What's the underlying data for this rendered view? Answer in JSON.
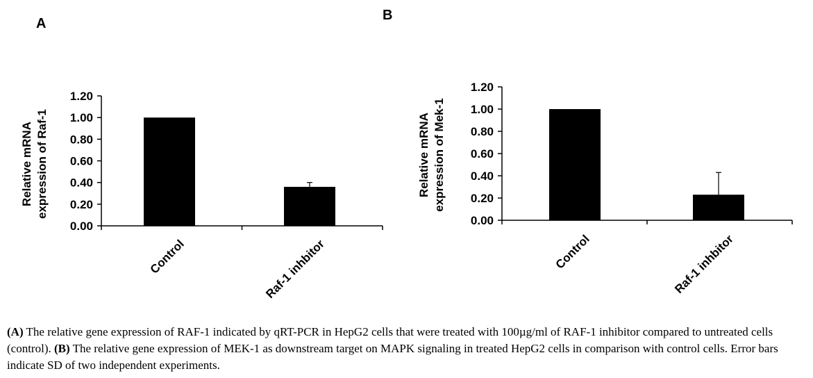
{
  "chart_data": [
    {
      "panel": "A",
      "type": "bar",
      "categories": [
        "Control",
        "Raf-1 inhbitor"
      ],
      "values": [
        1.0,
        0.36
      ],
      "errors": [
        0,
        0.04
      ],
      "ylabel_lines": [
        "Relative mRNA",
        "expression of Raf-1"
      ],
      "yticks": [
        "0.00",
        "0.20",
        "0.40",
        "0.60",
        "0.80",
        "1.00",
        "1.20"
      ],
      "ylim": [
        0,
        1.2
      ],
      "bar_color": "#000000",
      "grid": false,
      "legend": "none"
    },
    {
      "panel": "B",
      "type": "bar",
      "categories": [
        "Control",
        "Raf-1 inhbitor"
      ],
      "values": [
        1.0,
        0.23
      ],
      "errors": [
        0,
        0.2
      ],
      "ylabel_lines": [
        "Relative mRNA",
        "expression of Mek-1"
      ],
      "yticks": [
        "0.00",
        "0.20",
        "0.40",
        "0.60",
        "0.80",
        "1.00",
        "1.20"
      ],
      "ylim": [
        0,
        1.2
      ],
      "bar_color": "#000000",
      "grid": false,
      "legend": "none"
    }
  ],
  "caption": {
    "label_a": "(A)",
    "text_a": " The relative gene expression of RAF-1 indicated by qRT-PCR in HepG2 cells that were treated with 100µg/ml of RAF-1 inhibitor compared to untreated cells (control). ",
    "label_b": "(B)",
    "text_b": " The relative gene expression of MEK-1 as downstream target on MAPK signaling in treated HepG2 cells in comparison with control cells. Error bars indicate SD of two independent experiments."
  }
}
